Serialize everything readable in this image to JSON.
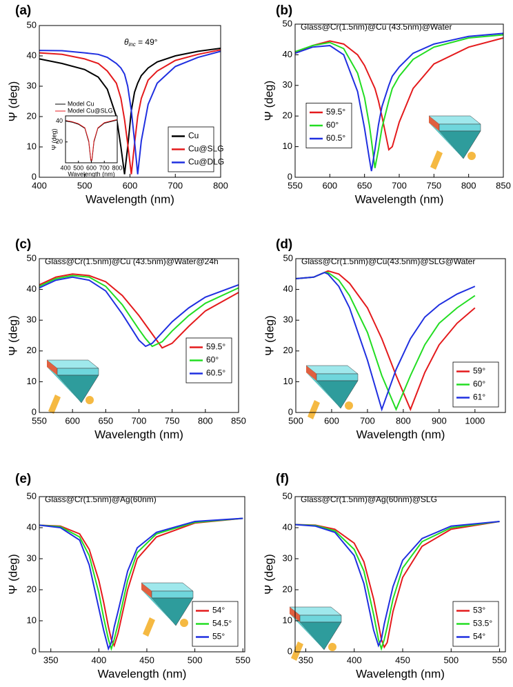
{
  "chart_data": [
    {
      "type": "line",
      "panel": "(a)",
      "annotation": [
        "θ",
        "inc",
        " = 49°"
      ],
      "xlabel": "Wavelength (nm)",
      "ylabel": "Ψ (deg)",
      "x": [
        400,
        450,
        500,
        530,
        550,
        570,
        580,
        588,
        595,
        603,
        610,
        617,
        625,
        640,
        660,
        700,
        750,
        800
      ],
      "series": [
        {
          "name": "Cu",
          "color": "#000000",
          "values": [
            39,
            37.5,
            35.5,
            33,
            29,
            20,
            10,
            1,
            10,
            22,
            28,
            31,
            33.5,
            36,
            38,
            40,
            41.5,
            42.5
          ]
        },
        {
          "name": "Cu@SLG",
          "color": "#e41a1c",
          "values": [
            41,
            40.5,
            39,
            37.5,
            35,
            31,
            26,
            19,
            11,
            1,
            11,
            20,
            26,
            32,
            35,
            38.5,
            40.5,
            42
          ]
        },
        {
          "name": "Cu@DLG",
          "color": "#1f2fe0",
          "values": [
            41.8,
            41.7,
            41,
            40.5,
            39.5,
            37.5,
            36,
            34,
            30,
            22,
            12,
            1,
            12,
            24,
            31,
            36.5,
            39.5,
            41.5
          ]
        }
      ],
      "xlim": [
        400,
        800
      ],
      "xticks": [
        400,
        500,
        600,
        700,
        800
      ],
      "ylim": [
        0,
        50
      ],
      "yticks": [
        0,
        10,
        20,
        30,
        40,
        50
      ],
      "legend": "lower right"
    },
    {
      "type": "line",
      "panel": "(b)",
      "title": "Glass@Cr(1.5nm)@Cu (43.5nm)@Water",
      "xlabel": "Wavelength (nm)",
      "ylabel": "Ψ (deg)",
      "x": [
        550,
        575,
        600,
        620,
        640,
        650,
        657,
        660,
        665,
        670,
        675,
        685,
        690,
        700,
        720,
        750,
        800,
        850
      ],
      "series": [
        {
          "name": "59.5°",
          "color": "#e41a1c",
          "values": [
            40.5,
            43,
            44.5,
            43.5,
            40,
            36.5,
            33,
            31.5,
            29,
            25,
            20,
            9,
            10,
            18,
            29,
            37,
            42.5,
            45.5
          ]
        },
        {
          "name": "60°",
          "color": "#22dd22",
          "values": [
            41,
            43,
            44,
            42,
            34,
            26,
            17,
            12,
            3,
            9,
            16,
            25,
            29,
            33,
            38.5,
            42.5,
            45.5,
            46.5
          ]
        },
        {
          "name": "60.5°",
          "color": "#1f2fe0",
          "values": [
            40.5,
            42.5,
            43,
            40,
            28,
            16,
            6,
            2,
            9,
            17,
            23,
            30,
            33,
            36,
            40.5,
            43.5,
            46,
            47
          ]
        }
      ],
      "xlim": [
        550,
        850
      ],
      "xticks": [
        550,
        600,
        650,
        700,
        750,
        800,
        850
      ],
      "ylim": [
        0,
        50
      ],
      "yticks": [
        0,
        10,
        20,
        30,
        40,
        50
      ],
      "legend": "center left"
    },
    {
      "type": "line",
      "panel": "(c)",
      "title": "Glass@Cr(1.5nm)@Cu (43.5nm)@Water@24h",
      "xlabel": "Wavelength (nm)",
      "ylabel": "Ψ (deg)",
      "x": [
        550,
        575,
        600,
        625,
        650,
        675,
        700,
        710,
        720,
        735,
        750,
        775,
        800,
        850
      ],
      "series": [
        {
          "name": "59.5°",
          "color": "#e41a1c",
          "values": [
            41.5,
            44,
            45,
            44.5,
            42.5,
            38,
            31.5,
            28.5,
            25.5,
            21,
            22.5,
            28,
            33,
            39
          ]
        },
        {
          "name": "60°",
          "color": "#22dd22",
          "values": [
            41,
            43.5,
            44.5,
            44,
            41,
            35,
            27,
            24,
            21.5,
            23,
            26.5,
            31.5,
            35.5,
            40.5
          ]
        },
        {
          "name": "60.5°",
          "color": "#1f2fe0",
          "values": [
            40.5,
            43,
            44,
            43,
            39.5,
            32,
            23.5,
            21.5,
            22.5,
            26,
            29.5,
            34,
            37.5,
            41.5
          ]
        }
      ],
      "xlim": [
        550,
        850
      ],
      "xticks": [
        550,
        600,
        650,
        700,
        750,
        800,
        850
      ],
      "ylim": [
        0,
        50
      ],
      "yticks": [
        0,
        10,
        20,
        30,
        40,
        50
      ],
      "legend": "center right"
    },
    {
      "type": "line",
      "panel": "(d)",
      "title": "Glass@Cr(1.5nm)@Cu(43.5nm)@SLG@Water",
      "xlabel": "Wavelength (nm)",
      "ylabel": "Ψ (deg)",
      "x": [
        500,
        550,
        580,
        590,
        620,
        650,
        700,
        740,
        780,
        820,
        860,
        900,
        950,
        1000
      ],
      "series": [
        {
          "name": "59°",
          "color": "#e41a1c",
          "values": [
            43.5,
            44,
            45.5,
            46,
            45,
            42,
            34,
            24,
            12,
            1,
            13,
            22,
            29,
            34
          ]
        },
        {
          "name": "60°",
          "color": "#22dd22",
          "values": [
            43.5,
            44,
            45.5,
            45.5,
            43,
            38,
            26,
            12,
            1,
            12,
            22,
            29,
            34,
            38
          ]
        },
        {
          "name": "61°",
          "color": "#1f2fe0",
          "values": [
            43.5,
            44,
            45.5,
            45,
            41,
            34,
            17,
            1,
            14,
            24,
            31,
            35,
            38.5,
            41
          ]
        }
      ],
      "xlim": [
        500,
        1085
      ],
      "xticks": [
        500,
        600,
        700,
        800,
        900,
        1000
      ],
      "ylim": [
        0,
        50
      ],
      "yticks": [
        0,
        10,
        20,
        30,
        40,
        50
      ],
      "legend": "lower right"
    },
    {
      "type": "line",
      "panel": "(e)",
      "title": "Glass@Cr(1.5nm)@Ag(60nm)",
      "xlabel": "Wavelength (nm)",
      "ylabel": "Ψ (deg)",
      "x": [
        338,
        360,
        380,
        390,
        400,
        405,
        410,
        413,
        416,
        420,
        430,
        440,
        460,
        500,
        550
      ],
      "series": [
        {
          "name": "54°",
          "color": "#e41a1c",
          "values": [
            40.8,
            40.5,
            38,
            33,
            23,
            16,
            8,
            4,
            2,
            6,
            20,
            30,
            37,
            41.5,
            43
          ]
        },
        {
          "name": "54.5°",
          "color": "#22dd22",
          "values": [
            40.8,
            40.3,
            37,
            31,
            19,
            11,
            4,
            1,
            4,
            9,
            23,
            32,
            38,
            41.7,
            43
          ]
        },
        {
          "name": "55°",
          "color": "#1f2fe0",
          "values": [
            40.8,
            40,
            36,
            28,
            14,
            7,
            1,
            3,
            8,
            13,
            26,
            33.5,
            38.5,
            42,
            43
          ]
        }
      ],
      "xlim": [
        338,
        552
      ],
      "xticks": [
        350,
        400,
        450,
        500,
        550
      ],
      "ylim": [
        0,
        50
      ],
      "yticks": [
        0,
        10,
        20,
        30,
        40,
        50
      ],
      "legend": "lower right"
    },
    {
      "type": "line",
      "panel": "(f)",
      "title": "Glass@Cr(1.5nm)@Ag(60nm)@SLG",
      "xlabel": "Wavelength (nm)",
      "ylabel": "Ψ (deg)",
      "x": [
        339,
        360,
        380,
        400,
        410,
        420,
        425,
        428,
        431,
        434,
        440,
        450,
        470,
        500,
        550
      ],
      "series": [
        {
          "name": "53°",
          "color": "#e41a1c",
          "values": [
            41,
            40.8,
            39.5,
            35,
            29,
            17,
            9,
            4,
            1.5,
            3,
            13,
            24,
            34,
            39.5,
            42
          ]
        },
        {
          "name": "53.5°",
          "color": "#22dd22",
          "values": [
            41,
            40.7,
            39,
            33,
            26,
            12,
            4,
            1,
            4,
            8,
            17,
            27,
            35.5,
            40,
            42
          ]
        },
        {
          "name": "54°",
          "color": "#1f2fe0",
          "values": [
            41,
            40.5,
            38.5,
            31,
            22,
            7,
            2,
            4,
            9,
            13,
            21,
            29.5,
            36.5,
            40.5,
            42
          ]
        }
      ],
      "xlim": [
        339,
        556
      ],
      "xticks": [
        350,
        400,
        450,
        500,
        550
      ],
      "ylim": [
        0,
        50
      ],
      "yticks": [
        0,
        10,
        20,
        30,
        40,
        50
      ],
      "legend": "lower right"
    },
    {
      "type": "line",
      "xlabel": "Wavelength (nm)",
      "ylabel": "Ψ (deg)",
      "x": [
        400,
        450,
        500,
        550,
        580,
        595,
        600,
        605,
        620,
        650,
        700,
        800
      ],
      "series": [
        {
          "name": "Model Cu",
          "color": "#000000",
          "values": [
            40,
            39,
            37,
            33,
            20,
            3,
            1,
            3,
            20,
            33,
            38,
            41
          ]
        },
        {
          "name": "Model Cu@SLG",
          "color": "#e41a1c",
          "values": [
            40.5,
            39.5,
            37.5,
            33.5,
            21,
            4,
            1.5,
            4,
            21,
            33.5,
            38.5,
            41.5
          ]
        }
      ],
      "xlim": [
        400,
        800
      ],
      "xticks": [
        400,
        500,
        600,
        700,
        800
      ],
      "ylim": [
        0,
        45
      ],
      "yticks": [
        20,
        40
      ],
      "legend": "upper right"
    }
  ]
}
